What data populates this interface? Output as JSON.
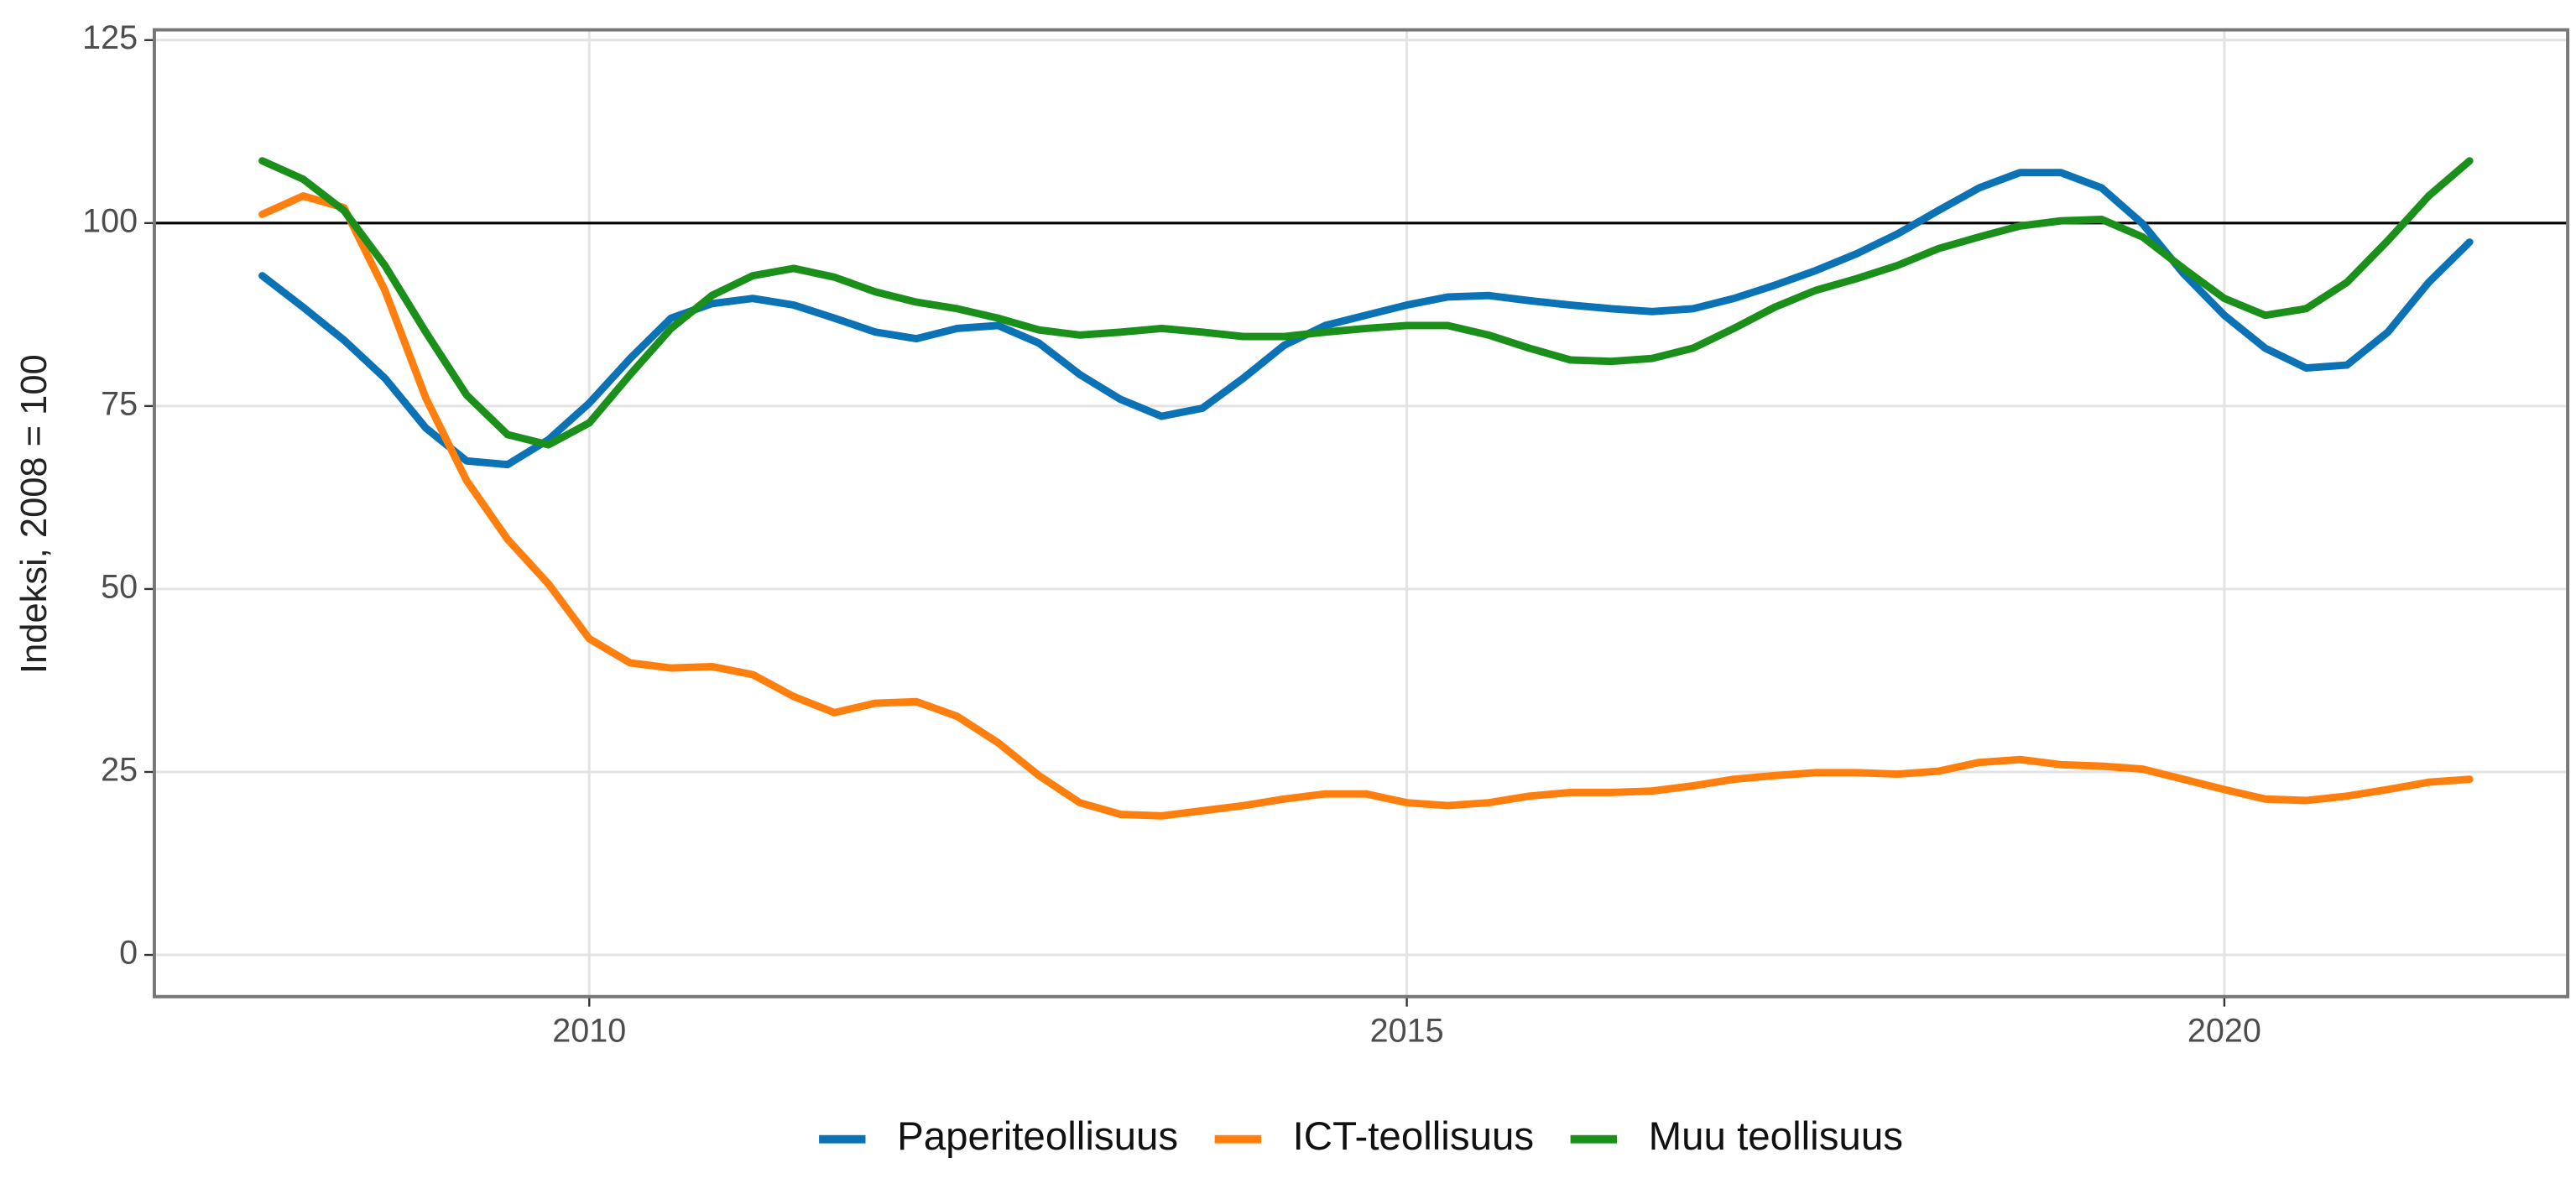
{
  "chart_data": {
    "type": "line",
    "y_label": "Indeksi, 2008 = 100",
    "x": [
      2008,
      2008.25,
      2008.5,
      2008.75,
      2009,
      2009.25,
      2009.5,
      2009.75,
      2010,
      2010.25,
      2010.5,
      2010.75,
      2011,
      2011.25,
      2011.5,
      2011.75,
      2012,
      2012.25,
      2012.5,
      2012.75,
      2013,
      2013.25,
      2013.5,
      2013.75,
      2014,
      2014.25,
      2014.5,
      2014.75,
      2015,
      2015.25,
      2015.5,
      2015.75,
      2016,
      2016.25,
      2016.5,
      2016.75,
      2017,
      2017.25,
      2017.5,
      2017.75,
      2018,
      2018.25,
      2018.5,
      2018.75,
      2019,
      2019.25,
      2019.5,
      2019.75,
      2020,
      2020.25,
      2020.5,
      2020.75,
      2021,
      2021.25,
      2021.5
    ],
    "series": [
      {
        "name": "Paperiteollisuus",
        "color": "#0a72b5",
        "values": [
          92.8,
          88.5,
          84,
          78.8,
          72,
          67.5,
          67,
          70.4,
          75.4,
          81.5,
          87,
          89,
          89.7,
          88.8,
          87,
          85.1,
          84.2,
          85.6,
          86,
          83.6,
          79.3,
          75.9,
          73.6,
          74.7,
          78.8,
          83.3,
          86,
          87.4,
          88.8,
          89.9,
          90.1,
          89.4,
          88.8,
          88.3,
          87.9,
          88.3,
          89.7,
          91.5,
          93.5,
          95.8,
          98.5,
          101.7,
          104.8,
          106.9,
          106.9,
          104.8,
          99.9,
          93.1,
          87.4,
          82.9,
          80.2,
          80.6,
          85.1,
          91.9,
          97.4
        ]
      },
      {
        "name": "ICT-teollisuus",
        "color": "#ff7f0e",
        "values": [
          101.2,
          103.7,
          102.1,
          90.8,
          76.1,
          64.8,
          56.8,
          50.7,
          43.2,
          39.9,
          39.2,
          39.4,
          38.3,
          35.3,
          33.1,
          34.4,
          34.6,
          32.6,
          29,
          24.5,
          20.8,
          19.2,
          19,
          19.7,
          20.4,
          21.3,
          22,
          22,
          20.8,
          20.4,
          20.8,
          21.7,
          22.2,
          22.2,
          22.4,
          23.1,
          24,
          24.5,
          24.9,
          24.9,
          24.7,
          25.1,
          26.3,
          26.7,
          26,
          25.8,
          25.4,
          24,
          22.6,
          21.3,
          21.1,
          21.7,
          22.6,
          23.6,
          24
        ]
      },
      {
        "name": "Muu teollisuus",
        "color": "#1a8f1a",
        "values": [
          108.5,
          106,
          101.7,
          94.2,
          85.1,
          76.5,
          71.1,
          69.7,
          72.7,
          79.3,
          85.6,
          90.1,
          92.8,
          93.8,
          92.6,
          90.6,
          89.2,
          88.3,
          87,
          85.4,
          84.7,
          85.1,
          85.6,
          85.1,
          84.5,
          84.5,
          85.1,
          85.6,
          86,
          86,
          84.7,
          82.9,
          81.3,
          81.1,
          81.5,
          82.9,
          85.6,
          88.5,
          90.8,
          92.4,
          94.2,
          96.5,
          98.1,
          99.6,
          100.3,
          100.5,
          98.1,
          93.8,
          89.7,
          87.4,
          88.3,
          91.9,
          97.6,
          103.7,
          108.5
        ]
      }
    ],
    "xlim": [
      2007.34,
      2022.1
    ],
    "ylim": [
      -5.7,
      126.4
    ],
    "xticks": [
      2010,
      2015,
      2020
    ],
    "yticks": [
      0,
      25,
      50,
      75,
      100,
      125
    ],
    "hline": 100,
    "grid": true,
    "legend": "bottom"
  }
}
